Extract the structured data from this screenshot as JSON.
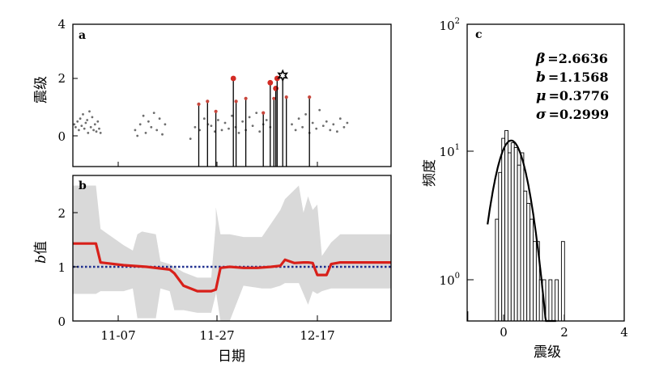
{
  "chart_data": [
    {
      "panel": "a",
      "type": "scatter",
      "ylabel": "震级",
      "ylim": [
        -1,
        4
      ],
      "yticks": [
        "0",
        "2",
        "4"
      ],
      "xticks": [],
      "small_events": [
        [
          0.3,
          0.4
        ],
        [
          0.6,
          0.3
        ],
        [
          1.0,
          0.5
        ],
        [
          1.3,
          0.2
        ],
        [
          1.6,
          0.6
        ],
        [
          1.9,
          0.35
        ],
        [
          2.2,
          0.75
        ],
        [
          2.5,
          0.25
        ],
        [
          2.8,
          0.45
        ],
        [
          3.1,
          0.55
        ],
        [
          3.3,
          0.1
        ],
        [
          3.6,
          0.85
        ],
        [
          3.9,
          0.3
        ],
        [
          4.2,
          0.65
        ],
        [
          4.5,
          0.2
        ],
        [
          4.8,
          0.4
        ],
        [
          5.1,
          0.15
        ],
        [
          5.4,
          0.5
        ],
        [
          5.7,
          0.25
        ],
        [
          6.0,
          0.1
        ],
        [
          13.5,
          0.2
        ],
        [
          14.0,
          0.0
        ],
        [
          14.6,
          0.4
        ],
        [
          15.3,
          0.7
        ],
        [
          15.8,
          0.1
        ],
        [
          16.4,
          0.5
        ],
        [
          17.0,
          0.3
        ],
        [
          17.6,
          0.8
        ],
        [
          18.2,
          0.2
        ],
        [
          18.8,
          0.6
        ],
        [
          19.4,
          0.05
        ],
        [
          20.0,
          0.4
        ],
        [
          25.5,
          -0.1
        ],
        [
          26.5,
          0.3
        ],
        [
          27.5,
          0.2
        ],
        [
          28.5,
          0.6
        ],
        [
          29.3,
          0.4
        ],
        [
          30.0,
          0.35
        ],
        [
          30.8,
          0.15
        ],
        [
          31.5,
          0.55
        ],
        [
          32.3,
          0.2
        ],
        [
          33.0,
          0.45
        ],
        [
          33.8,
          0.25
        ],
        [
          34.5,
          0.7
        ],
        [
          35.3,
          0.3
        ],
        [
          36.0,
          0.1
        ],
        [
          36.8,
          0.5
        ],
        [
          37.5,
          0.2
        ],
        [
          38.3,
          0.65
        ],
        [
          39.0,
          0.35
        ],
        [
          39.8,
          0.8
        ],
        [
          40.5,
          0.15
        ],
        [
          41.3,
          0.4
        ],
        [
          42.0,
          0.55
        ],
        [
          42.8,
          0.3
        ],
        [
          47.5,
          0.4
        ],
        [
          48.3,
          0.2
        ],
        [
          49.0,
          0.6
        ],
        [
          49.8,
          0.3
        ],
        [
          50.5,
          0.75
        ],
        [
          51.3,
          0.1
        ],
        [
          52.0,
          0.45
        ],
        [
          52.8,
          0.25
        ],
        [
          53.5,
          0.9
        ],
        [
          54.3,
          0.35
        ],
        [
          55.0,
          0.5
        ],
        [
          55.8,
          0.2
        ],
        [
          56.5,
          0.4
        ],
        [
          57.3,
          0.15
        ],
        [
          58.0,
          0.6
        ],
        [
          58.8,
          0.3
        ],
        [
          59.5,
          0.45
        ]
      ],
      "marked_events": [
        {
          "day": 27.3,
          "magnitude": 1.1,
          "color": "#c8463c"
        },
        {
          "day": 29.2,
          "magnitude": 1.2,
          "color": "#c8463c"
        },
        {
          "day": 31.0,
          "magnitude": 0.85,
          "color": "#c8463c"
        },
        {
          "day": 34.8,
          "magnitude": 2.0,
          "color": "#d32b24"
        },
        {
          "day": 35.4,
          "magnitude": 1.2,
          "color": "#c8463c"
        },
        {
          "day": 37.5,
          "magnitude": 1.3,
          "color": "#c8463c"
        },
        {
          "day": 41.3,
          "magnitude": 0.8,
          "color": "#c8463c"
        },
        {
          "day": 42.8,
          "magnitude": 1.85,
          "color": "#d32b24"
        },
        {
          "day": 43.6,
          "magnitude": 1.3,
          "color": "#c8463c"
        },
        {
          "day": 44.0,
          "magnitude": 1.65,
          "color": "#d32b24"
        },
        {
          "day": 44.3,
          "magnitude": 2.0,
          "color": "#d32b24"
        },
        {
          "day": 46.3,
          "magnitude": 1.35,
          "color": "#c8463c"
        },
        {
          "day": 51.3,
          "magnitude": 1.35,
          "color": "#c8463c"
        }
      ],
      "mainshock": {
        "day": 45.5,
        "magnitude": 2.1,
        "symbol": "star"
      }
    },
    {
      "panel": "b",
      "type": "line",
      "ylabel_italic": "b",
      "ylabel": "值",
      "ylim": [
        0,
        2.7
      ],
      "yticks": [
        "0",
        "1",
        "2"
      ],
      "xlabel": "日期",
      "xlim": [
        "10-29",
        "01-06"
      ],
      "xticks": [
        "11-07",
        "11-27",
        "12-17"
      ],
      "reference_b": 1.0,
      "x": [
        "10-29",
        "11-03",
        "11-04",
        "11-09",
        "11-14",
        "11-19",
        "11-20",
        "11-22",
        "11-25",
        "11-28",
        "11-29",
        "11-30",
        "12-02",
        "12-05",
        "12-08",
        "12-11",
        "12-13",
        "12-14",
        "12-16",
        "12-18",
        "12-19",
        "12-20",
        "12-21",
        "12-22",
        "12-23",
        "12-24",
        "12-26",
        "12-30",
        "01-06"
      ],
      "series": [
        {
          "values": [
            1.43,
            1.43,
            1.08,
            1.03,
            1.0,
            0.95,
            0.88,
            0.65,
            0.55,
            0.55,
            0.58,
            0.98,
            1.0,
            0.98,
            0.98,
            1.0,
            1.02,
            1.13,
            1.07,
            1.08,
            1.08,
            1.07,
            0.85,
            0.85,
            0.85,
            1.05,
            1.08,
            1.08,
            1.08
          ],
          "color": "#d8201a"
        }
      ],
      "band": {
        "x": [
          "10-29",
          "11-03",
          "11-04",
          "11-09",
          "11-11",
          "11-12",
          "11-13",
          "11-16",
          "11-17",
          "11-19",
          "11-20",
          "11-22",
          "11-25",
          "11-28",
          "11-29",
          "11-29",
          "11-30",
          "12-02",
          "12-05",
          "12-09",
          "12-11",
          "12-13",
          "12-14",
          "12-17",
          "12-18",
          "12-19",
          "12-20",
          "12-21",
          "12-22",
          "12-24",
          "12-26",
          "01-06"
        ],
        "upper": [
          2.5,
          2.5,
          1.7,
          1.4,
          1.3,
          1.6,
          1.65,
          1.6,
          1.1,
          1.05,
          1.0,
          0.9,
          0.8,
          0.8,
          1.8,
          2.1,
          1.6,
          1.6,
          1.55,
          1.55,
          1.8,
          2.05,
          2.25,
          2.5,
          2.0,
          2.3,
          2.05,
          2.15,
          1.2,
          1.45,
          1.6,
          1.6
        ],
        "lower": [
          0.5,
          0.5,
          0.55,
          0.55,
          0.6,
          0.05,
          0.05,
          0.05,
          0.6,
          0.55,
          0.2,
          0.2,
          0.15,
          0.15,
          0.5,
          0.55,
          0.0,
          0.0,
          0.65,
          0.6,
          0.6,
          0.65,
          0.7,
          0.7,
          0.5,
          0.3,
          0.55,
          0.5,
          0.55,
          0.6,
          0.6,
          0.6
        ],
        "color": "#d9d9d9"
      }
    },
    {
      "panel": "c",
      "type": "bar",
      "ylabel": "频度",
      "xlabel": "震级",
      "xlim": [
        -1,
        4
      ],
      "xticks": [
        "0",
        "2",
        "4"
      ],
      "yscale": "log",
      "ylim": [
        0.7,
        100
      ],
      "yticks": [
        {
          "base": "10",
          "exp": "2"
        },
        {
          "base": "10",
          "exp": "1"
        },
        {
          "base": "10",
          "exp": "0"
        }
      ],
      "bin_width": 0.1,
      "bins": [
        {
          "left": -0.1,
          "count": 3
        },
        {
          "left": 0.0,
          "count": 7
        },
        {
          "left": 0.1,
          "count": 13
        },
        {
          "left": 0.2,
          "count": 15
        },
        {
          "left": 0.3,
          "count": 10
        },
        {
          "left": 0.4,
          "count": 12
        },
        {
          "left": 0.5,
          "count": 11
        },
        {
          "left": 0.6,
          "count": 8
        },
        {
          "left": 0.7,
          "count": 10
        },
        {
          "left": 0.8,
          "count": 5
        },
        {
          "left": 0.9,
          "count": 4
        },
        {
          "left": 1.0,
          "count": 3
        },
        {
          "left": 1.1,
          "count": 2
        },
        {
          "left": 1.2,
          "count": 2
        },
        {
          "left": 1.3,
          "count": 1
        },
        {
          "left": 1.4,
          "count": 1
        },
        {
          "left": 1.6,
          "count": 1
        },
        {
          "left": 1.8,
          "count": 1
        },
        {
          "left": 2.0,
          "count": 2
        }
      ],
      "fit_curve": {
        "peak_magnitude": 0.4,
        "peak_count": 12.5,
        "sigma": 0.43
      },
      "stats": [
        {
          "symbol": "β",
          "value": "=2.6636"
        },
        {
          "symbol": "b",
          "value": "=1.1568"
        },
        {
          "symbol": "μ",
          "value": "=0.3776"
        },
        {
          "symbol": "σ",
          "value": "=0.2999"
        }
      ]
    }
  ]
}
